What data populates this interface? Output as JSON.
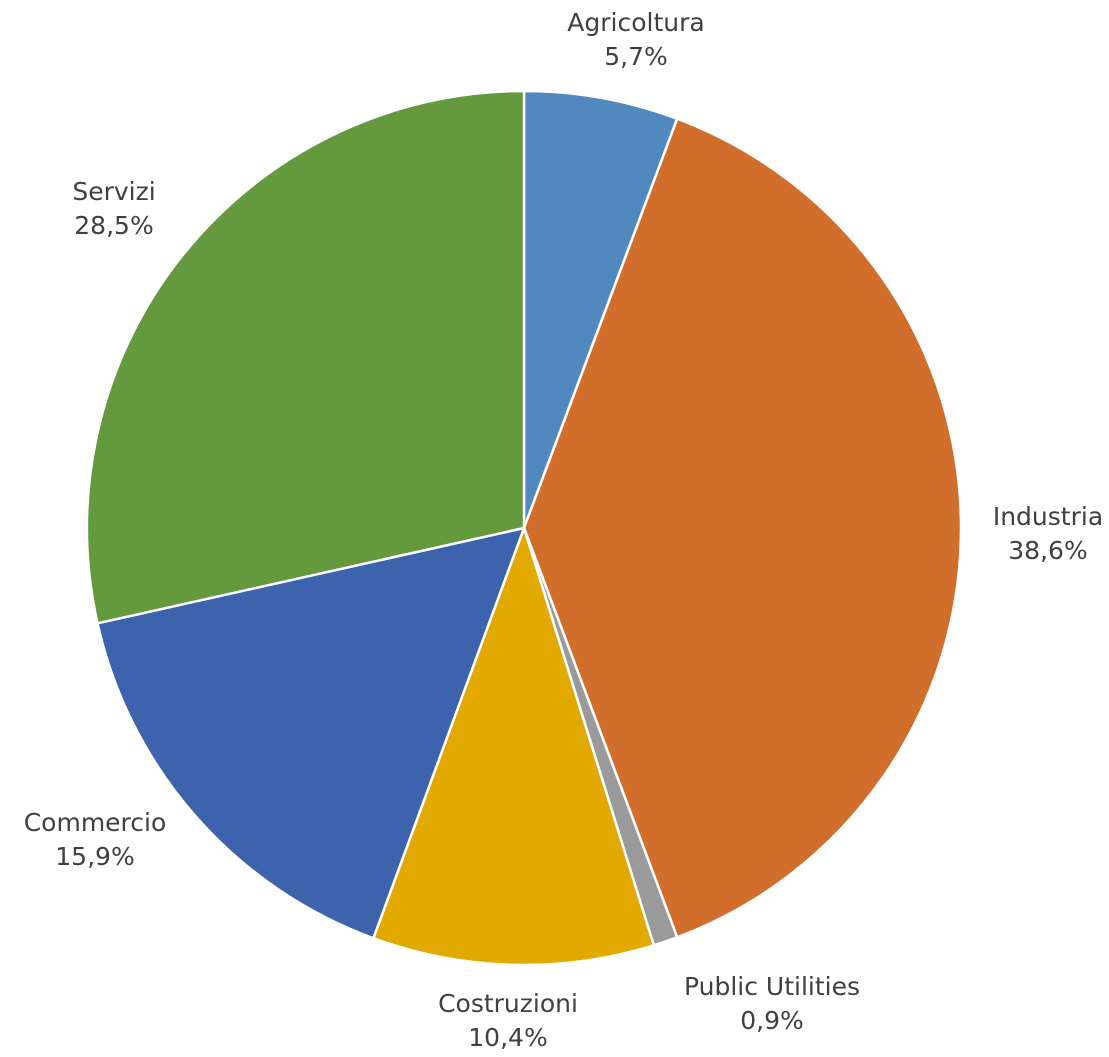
{
  "chart_data": {
    "type": "pie",
    "title": "",
    "start_angle_deg": 0,
    "direction": "clockwise",
    "categories": [
      "Agricoltura",
      "Industria",
      "Public Utilities",
      "Costruzioni",
      "Commercio",
      "Servizi"
    ],
    "values": [
      5.7,
      38.6,
      0.9,
      10.4,
      15.9,
      28.5
    ],
    "value_labels": [
      "5,7%",
      "38,6%",
      "0,9%",
      "10,4%",
      "15,9%",
      "28,5%"
    ],
    "colors": [
      "#5189BE",
      "#D26E2B",
      "#9A9A9A",
      "#E2A900",
      "#3C63AC",
      "#64993D"
    ],
    "label_color": "#404040",
    "legend": "none"
  }
}
